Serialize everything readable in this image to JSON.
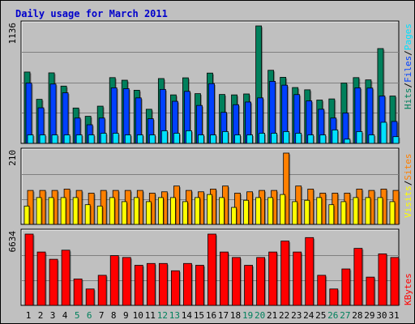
{
  "chart_data": {
    "title": "Daily usage for March 2011",
    "type": "bar",
    "categories": [
      "1",
      "2",
      "3",
      "4",
      "5",
      "6",
      "7",
      "8",
      "9",
      "10",
      "11",
      "12",
      "13",
      "14",
      "15",
      "16",
      "17",
      "18",
      "19",
      "20",
      "21",
      "22",
      "23",
      "24",
      "25",
      "26",
      "27",
      "28",
      "29",
      "30",
      "31"
    ],
    "weekend_days": [
      "5",
      "6",
      "12",
      "13",
      "19",
      "20",
      "26",
      "27"
    ],
    "colors": {
      "title": "#0000cc",
      "hits": "#00805c",
      "files": "#0040ff",
      "pages": "#00e0ff",
      "visits": "#ffff00",
      "sites": "#ff8000",
      "kbytes": "#ff0000",
      "weekday_label": "#000000",
      "weekend_label": "#00805c",
      "plot_bg": "#c0c0c0",
      "grid": "#808080"
    },
    "panels": [
      {
        "name": "hits-files-pages",
        "max_label": "1136",
        "ylim": [
          0,
          1136
        ],
        "legend": [
          {
            "label": "Hits",
            "color": "#00805c"
          },
          {
            "label": "/",
            "color": "#000000"
          },
          {
            "label": "Files",
            "color": "#0040ff"
          },
          {
            "label": "/",
            "color": "#000000"
          },
          {
            "label": "Pages",
            "color": "#00e0ff"
          }
        ],
        "series": [
          {
            "name": "Hits",
            "color": "#00805c",
            "values": [
              690,
              426,
              682,
              554,
              342,
              262,
              360,
              636,
              611,
              514,
              330,
              627,
              469,
              634,
              481,
              680,
              473,
              469,
              478,
              1136,
              707,
              639,
              540,
              518,
              419,
              430,
              584,
              636,
              614,
              917,
              458
            ]
          },
          {
            "name": "Files",
            "color": "#0040ff",
            "values": [
              584,
              344,
              574,
              489,
              245,
              180,
              245,
              537,
              529,
              440,
              238,
              522,
              407,
              503,
              367,
              578,
              300,
              374,
              400,
              440,
              600,
              563,
              472,
              411,
              330,
              245,
              294,
              537,
              535,
              458,
              212
            ]
          },
          {
            "name": "Pages",
            "color": "#00e0ff",
            "values": [
              82,
              82,
              82,
              82,
              82,
              82,
              98,
              98,
              82,
              82,
              82,
              122,
              98,
              122,
              82,
              82,
              114,
              82,
              82,
              98,
              98,
              114,
              98,
              82,
              82,
              130,
              41,
              114,
              82,
              204,
              65
            ]
          }
        ]
      },
      {
        "name": "visits-sites",
        "max_label": "210",
        "ylim": [
          0,
          210
        ],
        "legend": [
          {
            "label": "Visits",
            "color": "#ffff00"
          },
          {
            "label": "/",
            "color": "#000000"
          },
          {
            "label": "Sites",
            "color": "#ff8000"
          }
        ],
        "series": [
          {
            "name": "Visits",
            "color": "#ffff00",
            "values": [
              54,
              79,
              79,
              79,
              79,
              58,
              54,
              79,
              67,
              79,
              67,
              79,
              79,
              67,
              79,
              88,
              79,
              50,
              71,
              79,
              79,
              88,
              67,
              71,
              79,
              58,
              67,
              79,
              79,
              79,
              67
            ]
          },
          {
            "name": "Sites",
            "color": "#ff8000",
            "values": [
              100,
              100,
              100,
              104,
              100,
              92,
              100,
              100,
              100,
              100,
              92,
              96,
              113,
              100,
              96,
              104,
              113,
              92,
              96,
              100,
              100,
              210,
              113,
              104,
              92,
              92,
              92,
              104,
              100,
              104,
              100
            ]
          }
        ]
      },
      {
        "name": "kbytes",
        "max_label": "6634",
        "ylim": [
          0,
          6634
        ],
        "legend": [
          {
            "label": "KBytes",
            "color": "#ff0000"
          }
        ],
        "series": [
          {
            "name": "KBytes",
            "color": "#ff0000",
            "values": [
              6634,
              4967,
              4289,
              5137,
              2460,
              1526,
              2799,
              4628,
              4458,
              3729,
              3899,
              3899,
              3220,
              3899,
              3729,
              6634,
              4967,
              4458,
              3729,
              4458,
              4967,
              5985,
              4967,
              6310,
              2799,
              1526,
              3390,
              5306,
              2630,
              4795,
              4458
            ]
          }
        ]
      }
    ]
  }
}
